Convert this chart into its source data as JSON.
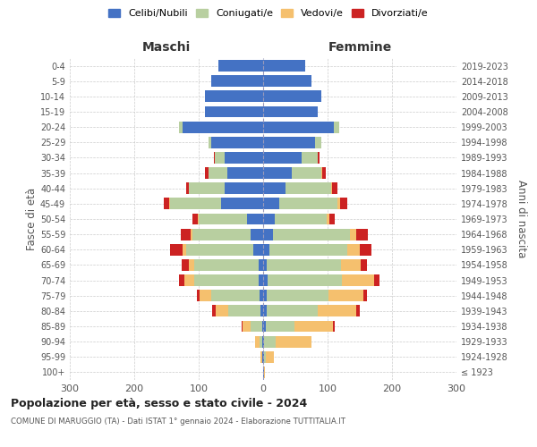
{
  "age_groups": [
    "100+",
    "95-99",
    "90-94",
    "85-89",
    "80-84",
    "75-79",
    "70-74",
    "65-69",
    "60-64",
    "55-59",
    "50-54",
    "45-49",
    "40-44",
    "35-39",
    "30-34",
    "25-29",
    "20-24",
    "15-19",
    "10-14",
    "5-9",
    "0-4"
  ],
  "birth_years": [
    "≤ 1923",
    "1924-1928",
    "1929-1933",
    "1934-1938",
    "1939-1943",
    "1944-1948",
    "1949-1953",
    "1954-1958",
    "1959-1963",
    "1964-1968",
    "1969-1973",
    "1974-1978",
    "1979-1983",
    "1984-1988",
    "1989-1993",
    "1994-1998",
    "1999-2003",
    "2004-2008",
    "2009-2013",
    "2014-2018",
    "2019-2023"
  ],
  "males": {
    "celibe": [
      0,
      1,
      1,
      2,
      4,
      5,
      7,
      7,
      15,
      20,
      25,
      65,
      60,
      55,
      60,
      80,
      125,
      90,
      90,
      80,
      70
    ],
    "coniugato": [
      0,
      1,
      4,
      18,
      50,
      75,
      100,
      100,
      105,
      90,
      75,
      80,
      55,
      30,
      15,
      5,
      5,
      0,
      0,
      0,
      0
    ],
    "vedovo": [
      0,
      2,
      8,
      12,
      20,
      18,
      15,
      8,
      5,
      3,
      2,
      1,
      0,
      0,
      0,
      0,
      0,
      0,
      0,
      0,
      0
    ],
    "divorziato": [
      0,
      0,
      0,
      2,
      5,
      5,
      8,
      12,
      20,
      15,
      8,
      8,
      5,
      5,
      2,
      0,
      0,
      0,
      0,
      0,
      0
    ]
  },
  "females": {
    "nubile": [
      1,
      2,
      2,
      4,
      5,
      6,
      7,
      6,
      10,
      15,
      18,
      25,
      35,
      45,
      60,
      80,
      110,
      85,
      90,
      75,
      65
    ],
    "coniugata": [
      0,
      2,
      18,
      45,
      80,
      95,
      115,
      115,
      120,
      120,
      80,
      90,
      70,
      45,
      25,
      10,
      8,
      0,
      0,
      0,
      0
    ],
    "vedova": [
      2,
      12,
      55,
      60,
      60,
      55,
      50,
      30,
      20,
      10,
      5,
      5,
      2,
      2,
      0,
      0,
      0,
      0,
      0,
      0,
      0
    ],
    "divorziata": [
      0,
      0,
      0,
      2,
      5,
      5,
      8,
      10,
      18,
      18,
      8,
      10,
      8,
      5,
      2,
      0,
      0,
      0,
      0,
      0,
      0
    ]
  },
  "colors": {
    "celibe": "#4472c4",
    "coniugato": "#b8cfa0",
    "vedovo": "#f5c06e",
    "divorziato": "#cc2222"
  },
  "legend_labels": [
    "Celibi/Nubili",
    "Coniugati/e",
    "Vedovi/e",
    "Divorziati/e"
  ],
  "legend_colors": [
    "#4472c4",
    "#b8cfa0",
    "#f5c06e",
    "#cc2222"
  ],
  "title": "Popolazione per età, sesso e stato civile - 2024",
  "subtitle": "COMUNE DI MARUGGIO (TA) - Dati ISTAT 1° gennaio 2024 - Elaborazione TUTTITALIA.IT",
  "xlabel_left": "Maschi",
  "xlabel_right": "Femmine",
  "ylabel_left": "Fasce di età",
  "ylabel_right": "Anni di nascita",
  "xlim": 300,
  "bg_color": "#ffffff",
  "grid_color": "#cccccc"
}
